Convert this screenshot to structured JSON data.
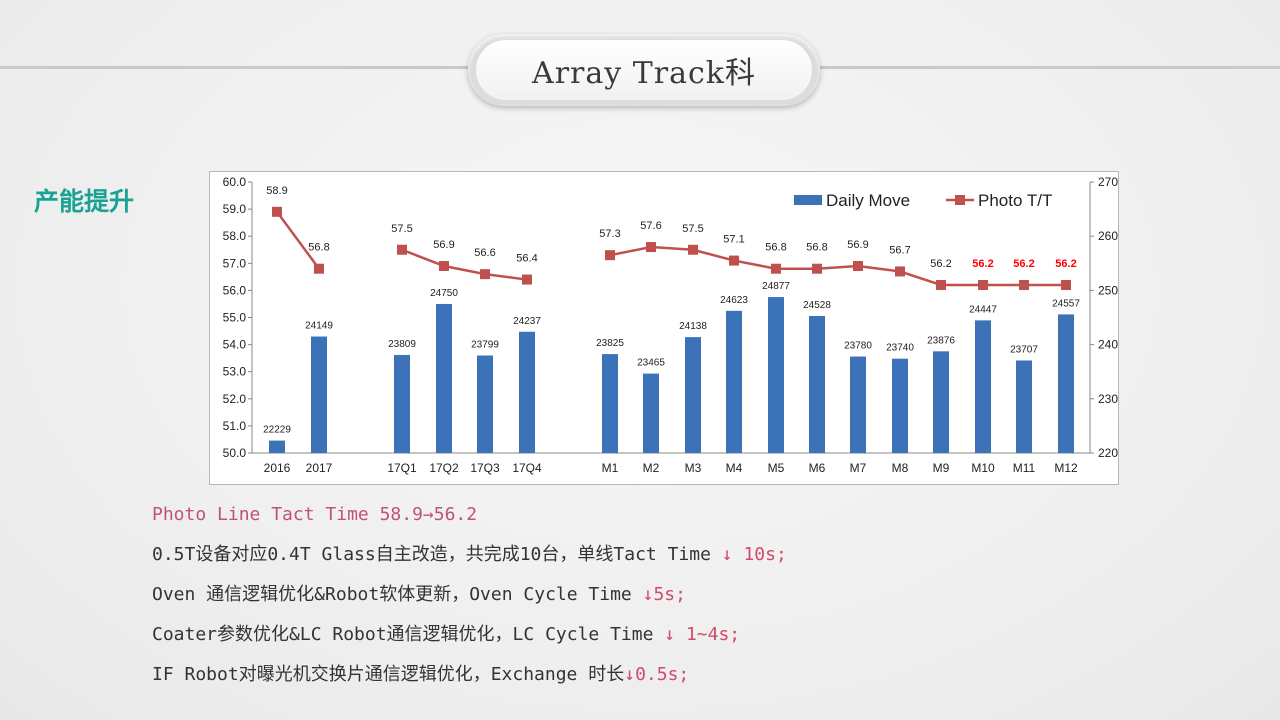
{
  "header": {
    "title": "Array Track科"
  },
  "section": {
    "label": "产能提升"
  },
  "chart_data": {
    "type": "bar+line",
    "categories": [
      "2016",
      "2017",
      "17Q1",
      "17Q2",
      "17Q3",
      "17Q4",
      "M1",
      "M2",
      "M3",
      "M4",
      "M5",
      "M6",
      "M7",
      "M8",
      "M9",
      "M10",
      "M11",
      "M12"
    ],
    "series": [
      {
        "name": "Daily Move",
        "type": "bar",
        "axis": "right",
        "color": "#3c72b8",
        "values": [
          22229,
          24149,
          23809,
          24750,
          23799,
          24237,
          23825,
          23465,
          24138,
          24623,
          24877,
          24528,
          23780,
          23740,
          23876,
          24447,
          23707,
          24557
        ]
      },
      {
        "name": "Photo T/T",
        "type": "line",
        "axis": "left",
        "color": "#c0504d",
        "values": [
          58.9,
          56.8,
          57.5,
          56.9,
          56.6,
          56.4,
          57.3,
          57.6,
          57.5,
          57.1,
          56.8,
          56.8,
          56.9,
          56.7,
          56.2,
          56.2,
          56.2,
          56.2
        ],
        "highlight_label_indices": [
          15,
          16,
          17
        ],
        "highlight_color": "#ff0000"
      }
    ],
    "left_axis": {
      "min": 50.0,
      "max": 60.0,
      "step": 1.0
    },
    "right_axis": {
      "min": 22000,
      "max": 27000,
      "step": 1000
    },
    "legend_position": "top-right"
  },
  "notes": {
    "line1": "Photo  Line  Tact Time 58.9→56.2",
    "line2_text": "0.5T设备对应0.4T Glass自主改造，共完成10台，单线Tact Time ",
    "line2_highlight": "↓ 10s;",
    "line3_text": "Oven 通信逻辑优化&Robot软体更新，Oven Cycle Time ",
    "line3_highlight": "↓5s;",
    "line4_text": "Coater参数优化&LC Robot通信逻辑优化，LC Cycle Time ",
    "line4_highlight": "↓ 1~4s;",
    "line5_text": "IF Robot对曝光机交换片通信逻辑优化，Exchange 时长",
    "line5_highlight": "↓0.5s;"
  }
}
